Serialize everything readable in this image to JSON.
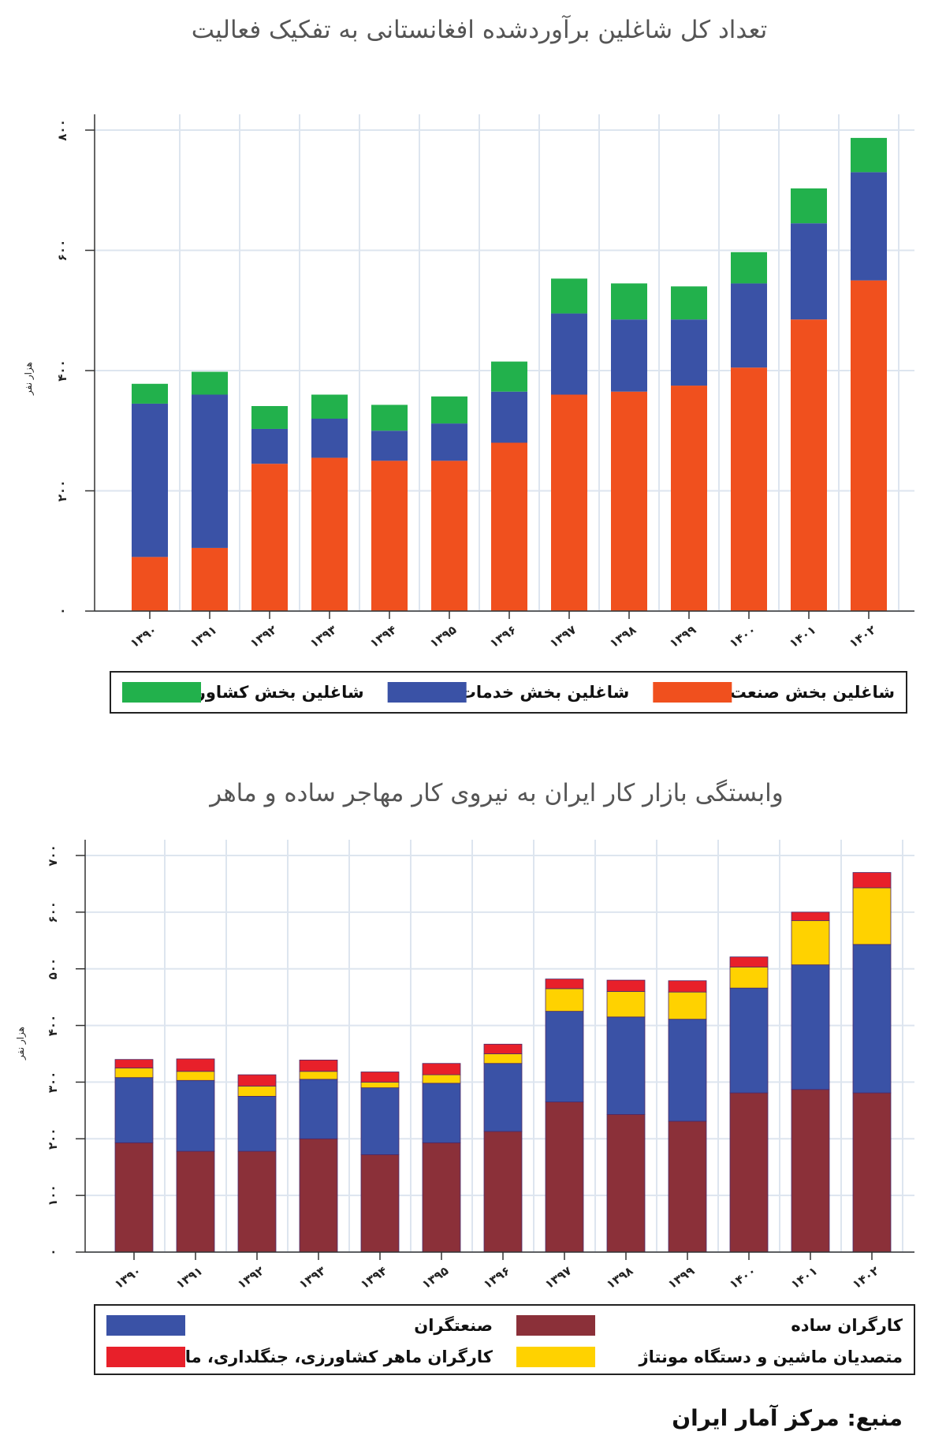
{
  "source": "منبع: مرکز آمار ایران",
  "chart_data": [
    {
      "type": "bar",
      "stacked": true,
      "title": "تعداد کل شاغلین برآوردشده افغانستانی به تفکیک فعالیت",
      "ylabel": "هزار نفر",
      "ylim": [
        0,
        800
      ],
      "yticks": [
        0,
        200,
        400,
        600,
        800
      ],
      "ytick_labels": [
        "۰",
        "۲۰۰",
        "۴۰۰",
        "۶۰۰",
        "۸۰۰"
      ],
      "categories": [
        "۱۳۹۰",
        "۱۳۹۱",
        "۱۳۹۲",
        "۱۳۹۳",
        "۱۳۹۴",
        "۱۳۹۵",
        "۱۳۹۶",
        "۱۳۹۷",
        "۱۳۹۸",
        "۱۳۹۹",
        "۱۴۰۰",
        "۱۴۰۱",
        "۱۴۰۲"
      ],
      "grid": true,
      "series": [
        {
          "name": "شاغلین بخش صنعت",
          "color": "#f0501e",
          "values": [
            90,
            105,
            245,
            255,
            250,
            250,
            280,
            360,
            365,
            375,
            405,
            485,
            550
          ]
        },
        {
          "name": "شاغلین بخش خدمات",
          "color": "#3a52a6",
          "values": [
            255,
            255,
            58,
            65,
            50,
            62,
            85,
            135,
            120,
            110,
            140,
            160,
            180
          ]
        },
        {
          "name": "شاغلین بخش کشاورزی",
          "color": "#22b14c",
          "values": [
            33,
            38,
            38,
            40,
            43,
            45,
            50,
            58,
            60,
            55,
            52,
            58,
            57
          ]
        }
      ]
    },
    {
      "type": "bar",
      "stacked": true,
      "title": "وابستگی بازار کار ایران به نیروی کار مهاجر ساده و ماهر",
      "ylabel": "هزار نفر",
      "ylim": [
        0,
        700
      ],
      "yticks": [
        0,
        100,
        200,
        300,
        400,
        500,
        600,
        700
      ],
      "ytick_labels": [
        "۰",
        "۱۰۰",
        "۲۰۰",
        "۳۰۰",
        "۴۰۰",
        "۵۰۰",
        "۶۰۰",
        "۷۰۰"
      ],
      "categories": [
        "۱۳۹۰",
        "۱۳۹۱",
        "۱۳۹۲",
        "۱۳۹۳",
        "۱۳۹۴",
        "۱۳۹۵",
        "۱۳۹۶",
        "۱۳۹۷",
        "۱۳۹۸",
        "۱۳۹۹",
        "۱۴۰۰",
        "۱۴۰۱",
        "۱۴۰۲"
      ],
      "grid": true,
      "series": [
        {
          "name": "کارگران ساده",
          "color": "#8b3039",
          "values": [
            193,
            178,
            178,
            200,
            172,
            193,
            213,
            265,
            243,
            231,
            281,
            287,
            281
          ]
        },
        {
          "name": "صنعتگران",
          "color": "#3a52a6",
          "values": [
            115,
            125,
            97,
            105,
            118,
            105,
            120,
            160,
            172,
            180,
            185,
            220,
            262
          ]
        },
        {
          "name": "متصدیان ماشین و دستگاه مونتاژ",
          "color": "#ffd200",
          "values": [
            17,
            16,
            18,
            14,
            10,
            15,
            17,
            40,
            45,
            48,
            37,
            78,
            100
          ]
        },
        {
          "name": "کارگران ماهر کشاورزی، جنگلداری، ماهیگیری",
          "color": "#e8202a",
          "values": [
            15,
            22,
            20,
            20,
            18,
            20,
            17,
            17,
            20,
            20,
            18,
            15,
            27
          ]
        }
      ]
    }
  ]
}
